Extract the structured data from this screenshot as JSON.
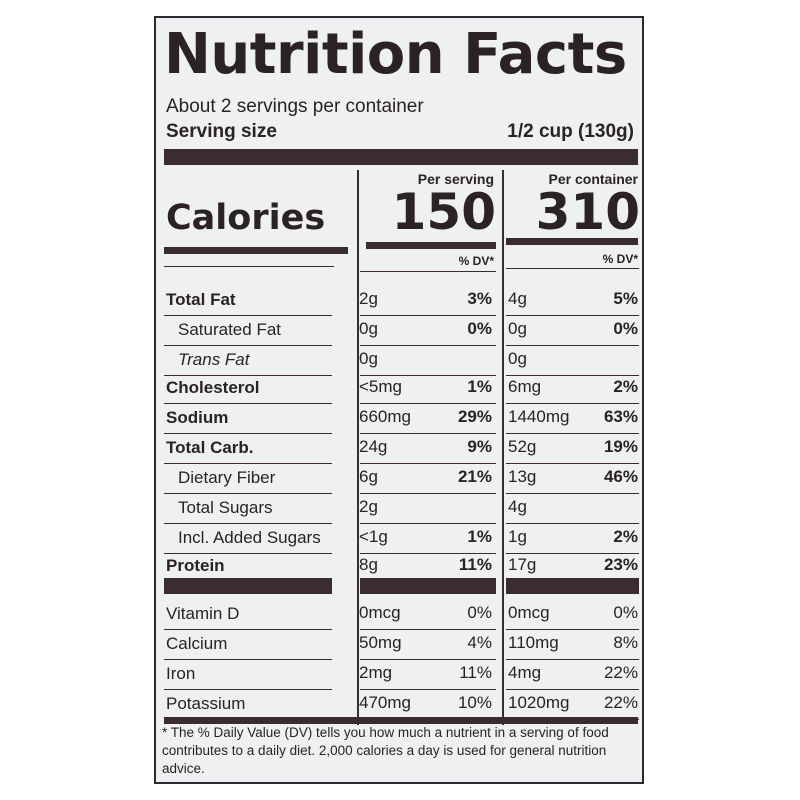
{
  "title": "Nutrition Facts",
  "servings_per_container": "About 2 servings per container",
  "serving_size_label": "Serving size",
  "serving_size_value": "1/2 cup (130g)",
  "calories_label": "Calories",
  "columns": [
    {
      "header": "Per serving",
      "calories": "150",
      "dv_header": "% DV*"
    },
    {
      "header": "Per container",
      "calories": "310",
      "dv_header": "% DV*"
    }
  ],
  "nutrients": [
    {
      "name": "Total Fat",
      "style": "b",
      "s_amt": "2g",
      "s_dv": "3%",
      "c_amt": "4g",
      "c_dv": "5%"
    },
    {
      "name": "Saturated Fat",
      "style": "ind",
      "s_amt": "0g",
      "s_dv": "0%",
      "c_amt": "0g",
      "c_dv": "0%"
    },
    {
      "name": "Trans Fat",
      "style": "ind i",
      "s_amt": "0g",
      "s_dv": "",
      "c_amt": "0g",
      "c_dv": ""
    },
    {
      "name": "Cholesterol",
      "style": "b",
      "s_amt": "<5mg",
      "s_dv": "1%",
      "c_amt": "6mg",
      "c_dv": "2%"
    },
    {
      "name": "Sodium",
      "style": "b",
      "s_amt": "660mg",
      "s_dv": "29%",
      "c_amt": "1440mg",
      "c_dv": "63%"
    },
    {
      "name": "Total Carb.",
      "style": "b",
      "s_amt": "24g",
      "s_dv": "9%",
      "c_amt": "52g",
      "c_dv": "19%"
    },
    {
      "name": "Dietary Fiber",
      "style": "ind",
      "s_amt": "6g",
      "s_dv": "21%",
      "c_amt": "13g",
      "c_dv": "46%"
    },
    {
      "name": "Total Sugars",
      "style": "ind",
      "s_amt": "2g",
      "s_dv": "",
      "c_amt": "4g",
      "c_dv": ""
    },
    {
      "name": "Incl. Added Sugars",
      "style": "ind",
      "s_amt": "<1g",
      "s_dv": "1%",
      "c_amt": "1g",
      "c_dv": "2%"
    },
    {
      "name": "Protein",
      "style": "b",
      "s_amt": "8g",
      "s_dv": "11%",
      "c_amt": "17g",
      "c_dv": "23%"
    }
  ],
  "vitamins": [
    {
      "name": "Vitamin D",
      "s_amt": "0mcg",
      "s_dv": "0%",
      "c_amt": "0mcg",
      "c_dv": "0%"
    },
    {
      "name": "Calcium",
      "s_amt": "50mg",
      "s_dv": "4%",
      "c_amt": "110mg",
      "c_dv": "8%"
    },
    {
      "name": "Iron",
      "s_amt": "2mg",
      "s_dv": "11%",
      "c_amt": "4mg",
      "c_dv": "22%"
    },
    {
      "name": "Potassium",
      "s_amt": "470mg",
      "s_dv": "10%",
      "c_amt": "1020mg",
      "c_dv": "22%"
    }
  ],
  "footnote": "* The % Daily Value (DV) tells you how much a nutrient in a serving of food contributes to a daily diet. 2,000 calories a day is used for general nutrition advice."
}
